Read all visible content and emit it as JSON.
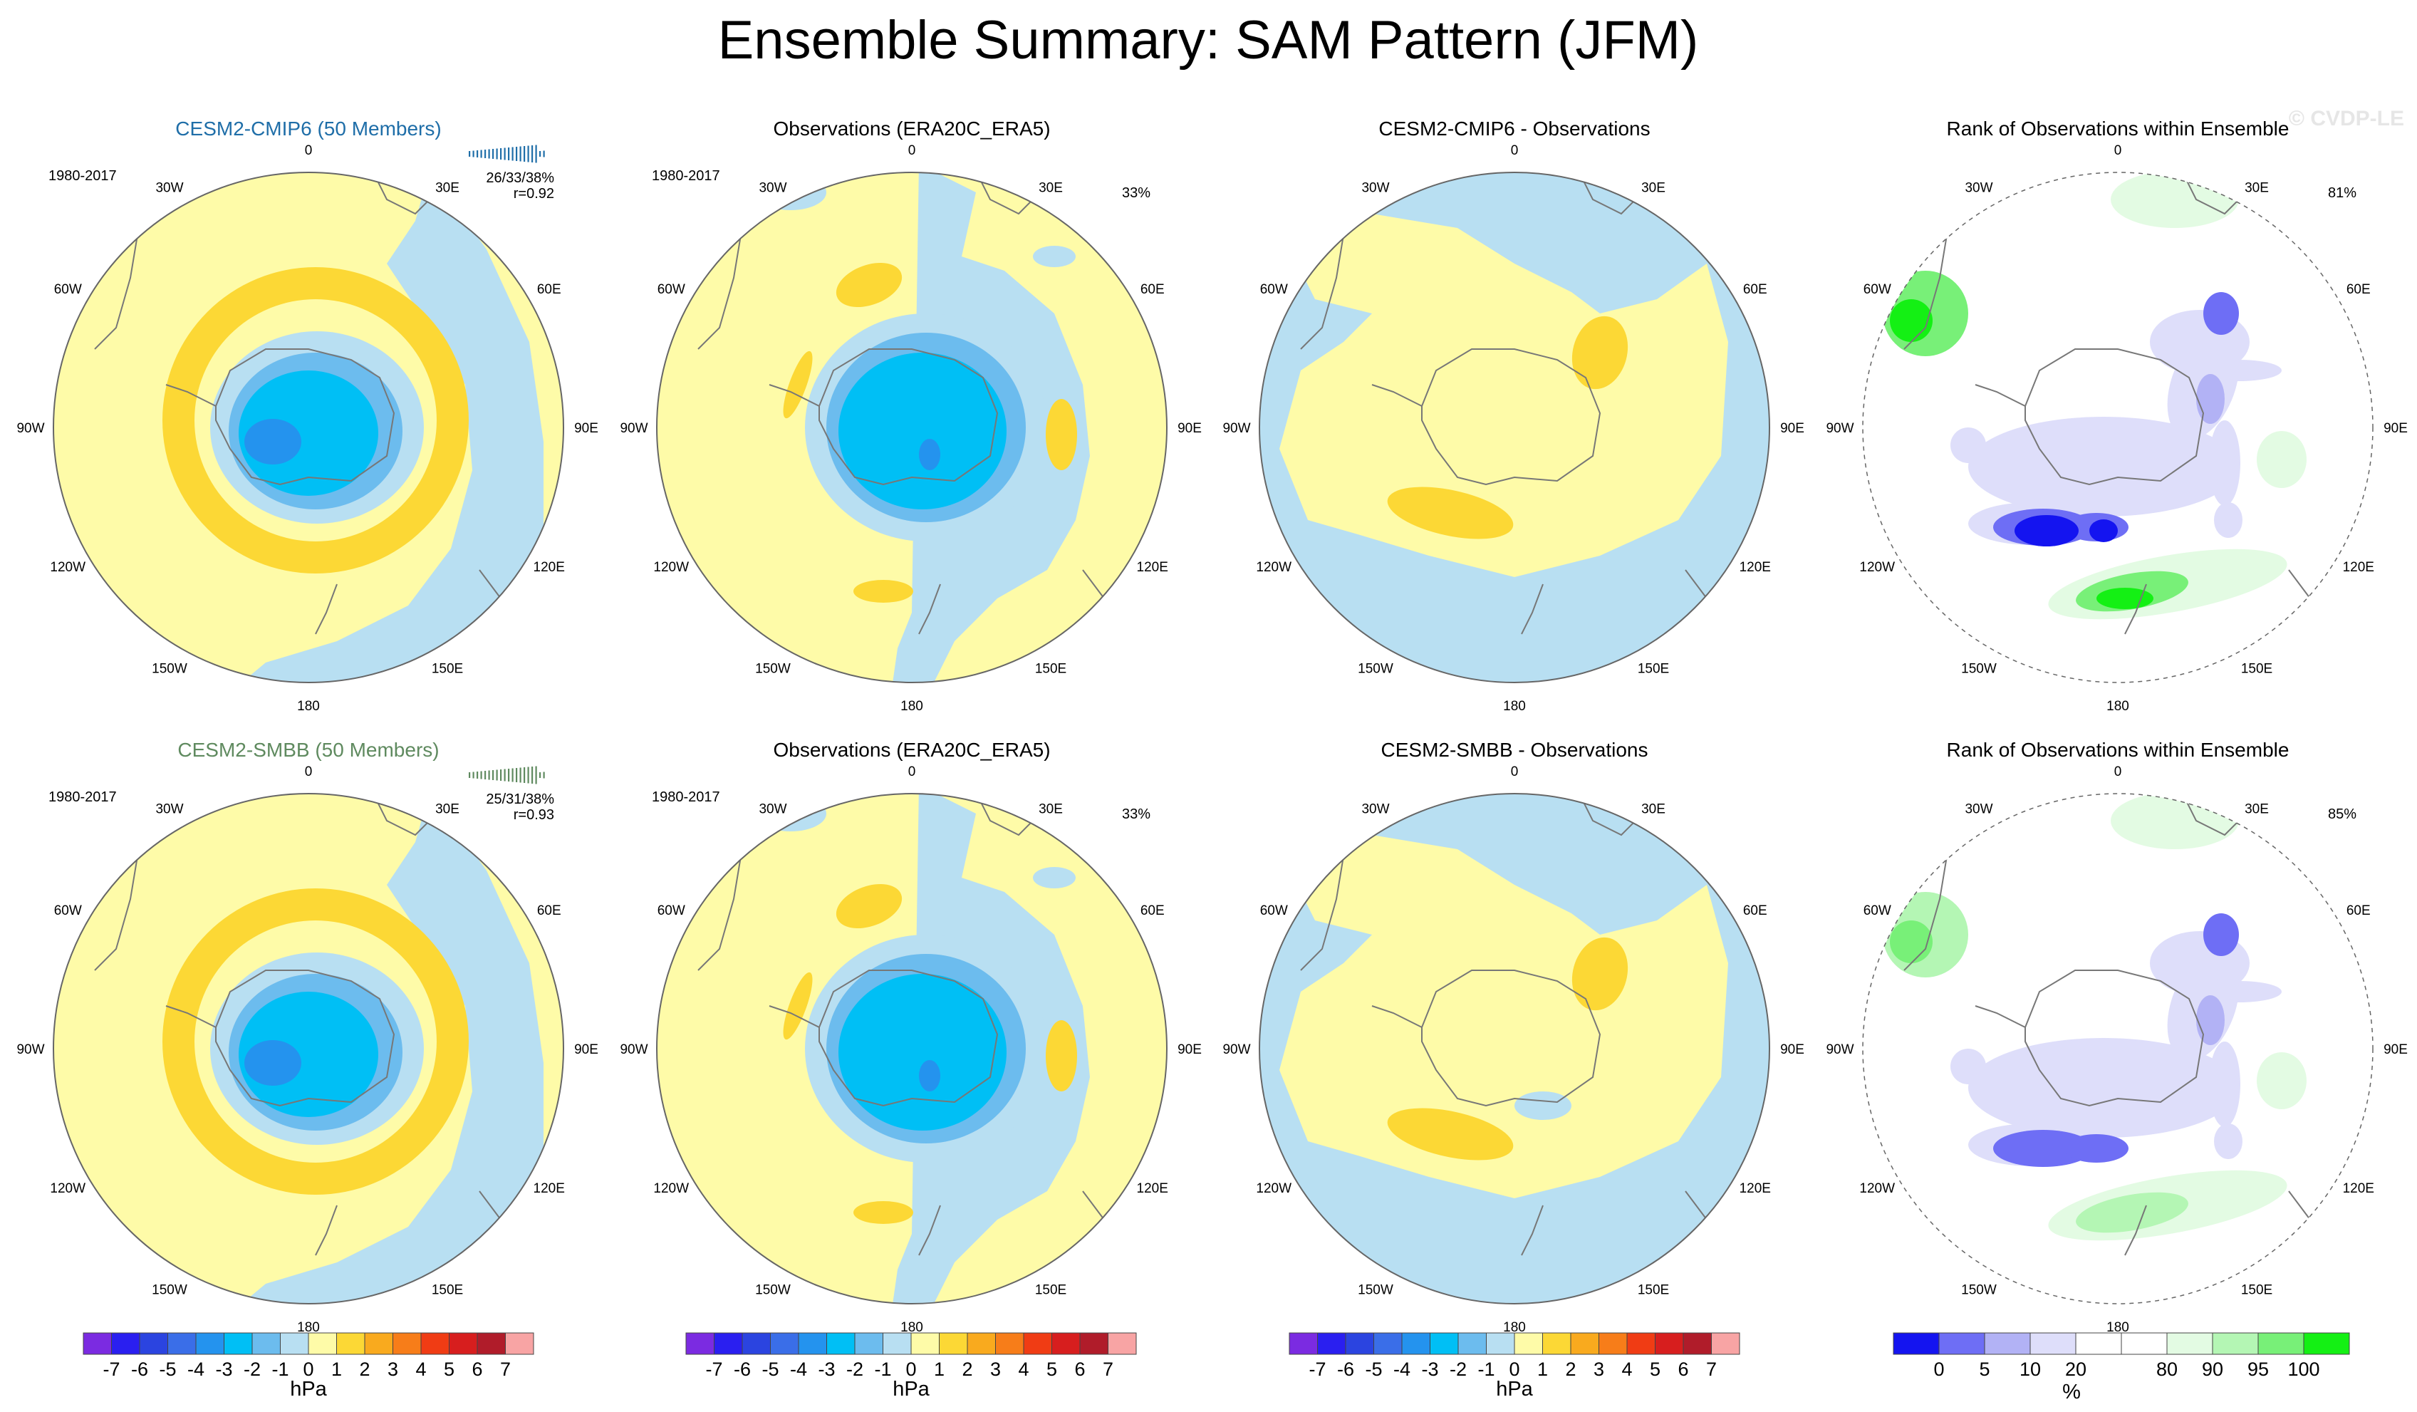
{
  "title": "Ensemble Summary: SAM Pattern (JFM)",
  "watermark": "© CVDP-LE",
  "lon_labels": [
    "0",
    "30E",
    "60E",
    "90E",
    "120E",
    "150E",
    "180",
    "150W",
    "120W",
    "90W",
    "60W",
    "30W"
  ],
  "colors": {
    "hpa": [
      "#7b2be1",
      "#2a1ff0",
      "#2b44e0",
      "#3a6ee8",
      "#2493ee",
      "#00bff5",
      "#6cbcee",
      "#b8dff2",
      "#fefba8",
      "#fcd835",
      "#f9aa1e",
      "#f77d19",
      "#f03c14",
      "#d71e1e",
      "#b01c2a",
      "#f8a4a4"
    ],
    "rank": [
      "#1414f0",
      "#6e6ef5",
      "#b2b2f5",
      "#dedefa",
      "#ffffff",
      "#ffffff",
      "#e3fbe3",
      "#b4f6b4",
      "#78f078",
      "#14f014"
    ],
    "model1": "#1f6ea8",
    "model2": "#5f8a5f",
    "coast": "#777777"
  },
  "panels": [
    {
      "id": "p11",
      "title": "CESM2-CMIP6 (50 Members)",
      "title_color": "model1",
      "period": "1980-2017",
      "pct": "",
      "stats_line1": "26/33/38%",
      "stats_line2": "r=0.92",
      "kind": "model"
    },
    {
      "id": "p12",
      "title": "Observations (ERA20C_ERA5)",
      "period": "1980-2017",
      "pct": "33%",
      "kind": "obs"
    },
    {
      "id": "p13",
      "title": "CESM2-CMIP6 - Observations",
      "period": "",
      "pct": "",
      "kind": "diff"
    },
    {
      "id": "p14",
      "title": "Rank of Observations within Ensemble",
      "period": "",
      "pct": "81%",
      "kind": "rank"
    },
    {
      "id": "p21",
      "title": "CESM2-SMBB (50 Members)",
      "title_color": "model2",
      "period": "1980-2017",
      "pct": "",
      "stats_line1": "25/31/38%",
      "stats_line2": "r=0.93",
      "kind": "model"
    },
    {
      "id": "p22",
      "title": "Observations (ERA20C_ERA5)",
      "period": "1980-2017",
      "pct": "33%",
      "kind": "obs"
    },
    {
      "id": "p23",
      "title": "CESM2-SMBB - Observations",
      "period": "",
      "pct": "",
      "kind": "diff"
    },
    {
      "id": "p24",
      "title": "Rank of Observations within Ensemble",
      "period": "",
      "pct": "85%",
      "kind": "rank"
    }
  ],
  "chart_data": [
    {
      "type": "heatmap",
      "title": "Ensemble Summary: SAM Pattern (JFM)",
      "projection": "south polar stereographic",
      "colorbar_hpa": {
        "unit": "hPa",
        "ticks": [
          "-7",
          "-6",
          "-5",
          "-4",
          "-3",
          "-2",
          "-1",
          "0",
          "1",
          "2",
          "3",
          "4",
          "5",
          "6",
          "7"
        ],
        "bins": 16
      },
      "colorbar_rank": {
        "unit": "%",
        "ticks": [
          "0",
          "5",
          "10",
          "20",
          "80",
          "90",
          "95",
          "100"
        ],
        "bins": 10
      },
      "series": [
        {
          "name": "CESM2-CMIP6 (50 Members)",
          "period": "1980-2017",
          "pcvar": "26/33/38%",
          "r": 0.92,
          "center_min_hPa": -4,
          "ring_max_hPa": 1
        },
        {
          "name": "Observations (ERA20C_ERA5)",
          "period": "1980-2017",
          "pcvar": "33%",
          "center_min_hPa": -4
        },
        {
          "name": "CESM2-CMIP6 - Observations",
          "range_hPa": [
            -1,
            1
          ]
        },
        {
          "name": "Rank of Observations within Ensemble",
          "coverage_pct": 81
        },
        {
          "name": "CESM2-SMBB (50 Members)",
          "period": "1980-2017",
          "pcvar": "25/31/38%",
          "r": 0.93,
          "center_min_hPa": -4,
          "ring_max_hPa": 1
        },
        {
          "name": "Observations (ERA20C_ERA5)",
          "period": "1980-2017",
          "pcvar": "33%",
          "center_min_hPa": -4
        },
        {
          "name": "CESM2-SMBB - Observations",
          "range_hPa": [
            -1,
            1
          ]
        },
        {
          "name": "Rank of Observations within Ensemble",
          "coverage_pct": 85
        }
      ]
    }
  ]
}
